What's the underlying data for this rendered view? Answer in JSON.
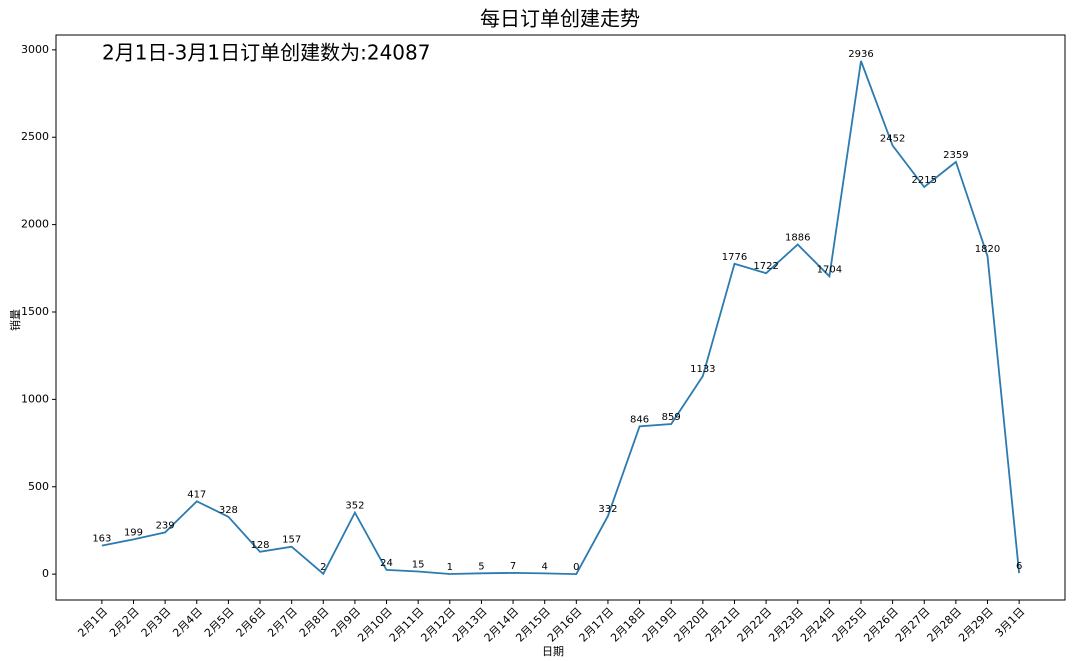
{
  "chart_data": {
    "type": "line",
    "title": "每日订单创建走势",
    "annotation": "2月1日-3月1日订单创建数为:24087",
    "x_label": "日期",
    "y_label": "销量",
    "categories": [
      "2月1日",
      "2月2日",
      "2月3日",
      "2月4日",
      "2月5日",
      "2月6日",
      "2月7日",
      "2月8日",
      "2月9日",
      "2月10日",
      "2月11日",
      "2月12日",
      "2月13日",
      "2月14日",
      "2月15日",
      "2月16日",
      "2月17日",
      "2月18日",
      "2月19日",
      "2月20日",
      "2月21日",
      "2月22日",
      "2月23日",
      "2月24日",
      "2月25日",
      "2月26日",
      "2月27日",
      "2月28日",
      "2月29日",
      "3月1日"
    ],
    "values": [
      163,
      199,
      239,
      417,
      328,
      128,
      157,
      2,
      352,
      24,
      15,
      1,
      5,
      7,
      4,
      0,
      332,
      846,
      859,
      1133,
      1776,
      1722,
      1886,
      1704,
      2936,
      2452,
      2215,
      2359,
      1820,
      6
    ],
    "color": "#2b7bb0",
    "ylim": [
      -148,
      3085
    ],
    "yticks": [
      0,
      500,
      1000,
      1500,
      2000,
      2500,
      3000
    ],
    "grid": false
  }
}
